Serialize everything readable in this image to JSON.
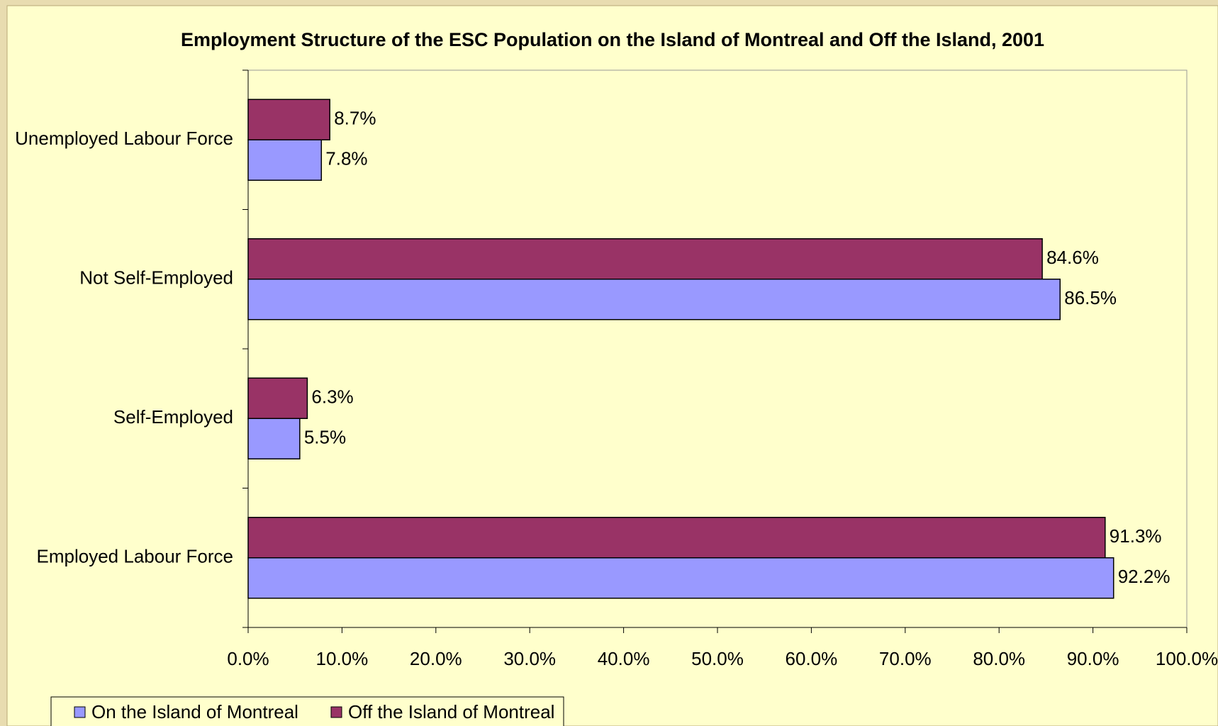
{
  "chart_data": {
    "type": "bar",
    "orientation": "horizontal",
    "title": "Employment Structure of the ESC Population on the Island of Montreal and Off the Island, 2001",
    "categories": [
      "Unemployed Labour Force",
      "Not Self-Employed",
      "Self-Employed",
      "Employed Labour Force"
    ],
    "series": [
      {
        "name": "On the Island of Montreal",
        "color": "#9999ff",
        "values": [
          7.8,
          86.5,
          5.5,
          92.2
        ],
        "value_labels": [
          "7.8%",
          "86.5%",
          "5.5%",
          "92.2%"
        ]
      },
      {
        "name": "Off the Island of Montreal",
        "color": "#993366",
        "values": [
          8.7,
          84.6,
          6.3,
          91.3
        ],
        "value_labels": [
          "8.7%",
          "84.6%",
          "6.3%",
          "91.3%"
        ]
      }
    ],
    "xlim": [
      0,
      100
    ],
    "xticks": [
      {
        "value": 0,
        "label": "0.0%"
      },
      {
        "value": 10,
        "label": "10.0%"
      },
      {
        "value": 20,
        "label": "20.0%"
      },
      {
        "value": 30,
        "label": "30.0%"
      },
      {
        "value": 40,
        "label": "40.0%"
      },
      {
        "value": 50,
        "label": "50.0%"
      },
      {
        "value": 60,
        "label": "60.0%"
      },
      {
        "value": 70,
        "label": "70.0%"
      },
      {
        "value": 80,
        "label": "80.0%"
      },
      {
        "value": 90,
        "label": "90.0%"
      },
      {
        "value": 100,
        "label": "100.0%"
      }
    ],
    "grid": false,
    "legend": "bottom"
  }
}
